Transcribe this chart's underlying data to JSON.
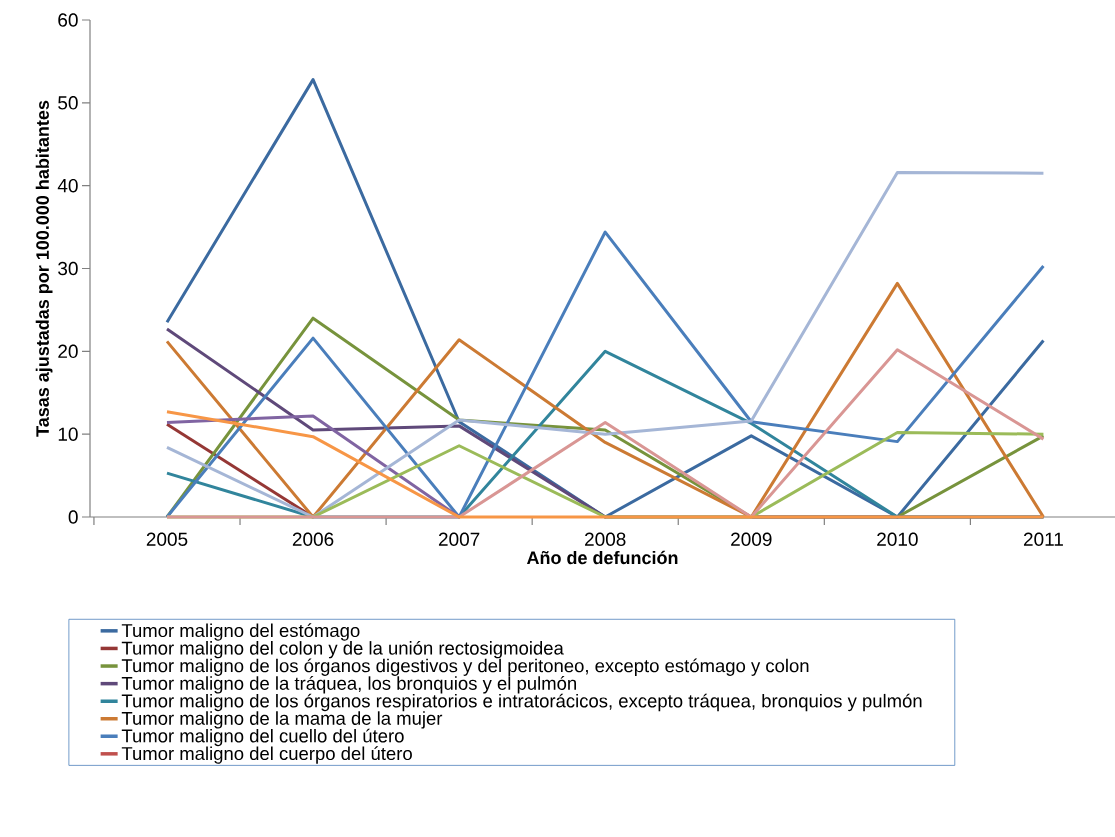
{
  "chart_data": {
    "type": "line",
    "xlabel": "Año de defunción",
    "ylabel": "Tasas ajustadas por 100.000 habitantes",
    "categories": [
      "2005",
      "2006",
      "2007",
      "2008",
      "2009",
      "2010",
      "2011"
    ],
    "ylim": [
      0,
      60
    ],
    "yticks": [
      0,
      10,
      20,
      30,
      40,
      50,
      60
    ],
    "grid": false,
    "legend": "bottom",
    "marker": "none",
    "line_style": "solid",
    "series": [
      {
        "name": "Tumor maligno del estómago",
        "color": "#3b6aa0",
        "values": [
          23.5,
          52.8,
          11.5,
          0,
          9.8,
          0,
          21.3
        ]
      },
      {
        "name": "Tumor maligno del colon y de la unión rectosigmoidea",
        "color": "#953735",
        "values": [
          11.2,
          0,
          null,
          null,
          null,
          null,
          null
        ]
      },
      {
        "name": "Tumor maligno de los órganos digestivos y del peritoneo, excepto estómago y colon",
        "color": "#77933c",
        "values": [
          0,
          24,
          11.7,
          10.5,
          0,
          0,
          9.8
        ]
      },
      {
        "name": "Tumor maligno de la tráquea, los bronquios y el pulmón",
        "color": "#5f497a",
        "values": [
          22.7,
          10.5,
          11,
          0,
          0,
          0,
          0
        ]
      },
      {
        "name": "Tumor maligno de los órganos respiratorios e intratorácicos, excepto tráquea, bronquios y pulmón",
        "color": "#31859c",
        "values": [
          5.3,
          0,
          0,
          20,
          11.3,
          0,
          0
        ]
      },
      {
        "name": "Tumor maligno de la mama de la mujer",
        "color": "#cc7a33",
        "values": [
          21.2,
          0,
          21.4,
          9,
          0,
          28.2,
          0
        ]
      },
      {
        "name": "Tumor maligno del cuello del útero",
        "color": "#4a7ebb",
        "values": [
          0,
          21.6,
          0,
          34.4,
          11.5,
          9.1,
          30.3
        ]
      },
      {
        "name": "Tumor maligno del cuerpo del útero",
        "color": "#c0504d",
        "values": [
          null,
          null,
          null,
          null,
          null,
          null,
          null
        ]
      },
      {
        "color": "#8064a2",
        "values": [
          11.4,
          12.2,
          0,
          null,
          null,
          null,
          null
        ]
      },
      {
        "color": "#a5b6d6",
        "values": [
          8.4,
          0,
          11.7,
          10,
          11.6,
          41.6,
          41.5
        ]
      },
      {
        "color": "#9bbb59",
        "values": [
          0,
          0,
          8.6,
          0,
          0,
          10.2,
          10
        ]
      },
      {
        "color": "#d99694",
        "values": [
          0,
          0,
          0,
          11.4,
          0,
          20.2,
          9.4
        ]
      },
      {
        "color": "#f79646",
        "values": [
          12.7,
          9.7,
          0,
          0,
          0,
          0,
          0
        ]
      }
    ]
  }
}
